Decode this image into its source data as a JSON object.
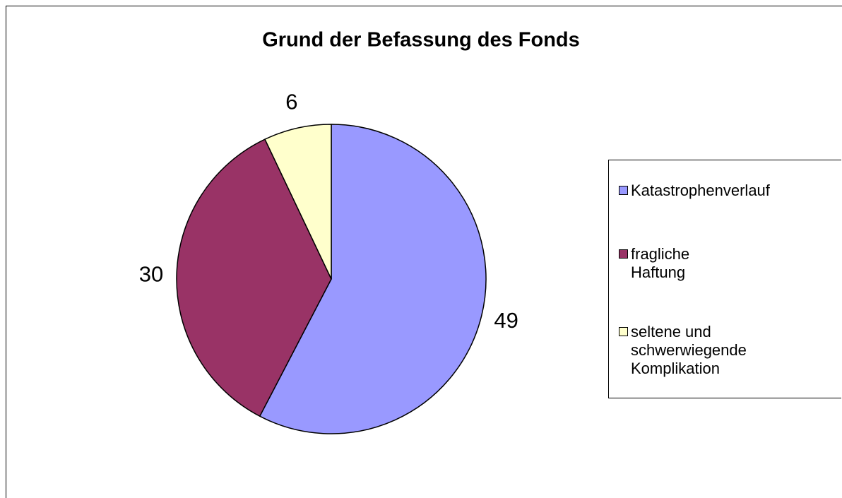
{
  "chart_data": {
    "type": "pie",
    "title": "Grund der Befassung des Fonds",
    "categories": [
      "Katastrophenverlauf",
      "fragliche Haftung",
      "seltene und schwerwiegende Komplikation"
    ],
    "values": [
      49,
      30,
      6
    ],
    "colors": [
      "#9999ff",
      "#993366",
      "#ffffcc"
    ],
    "legend": "right"
  }
}
